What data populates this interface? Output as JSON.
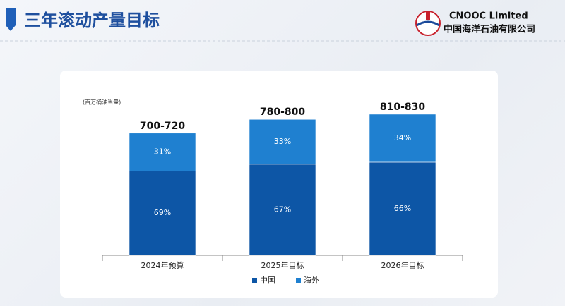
{
  "header": {
    "title": "三年滚动产量目标",
    "company_en": "CNOOC Limited",
    "company_cn": "中国海洋石油有限公司"
  },
  "chart_data": {
    "type": "stacked_bar",
    "unit_label": "(百万桶油当量)",
    "categories": [
      "2024年预算",
      "2025年目标",
      "2026年目标"
    ],
    "total_labels": [
      "700-720",
      "780-800",
      "810-830"
    ],
    "total_ranges": [
      [
        700,
        720
      ],
      [
        780,
        800
      ],
      [
        810,
        830
      ]
    ],
    "series": [
      {
        "name": "中国",
        "color": "#0d56a6",
        "values": [
          69,
          67,
          66
        ],
        "value_labels": [
          "69%",
          "67%",
          "66%"
        ]
      },
      {
        "name": "海外",
        "color": "#1f80d0",
        "values": [
          31,
          33,
          34
        ],
        "value_labels": [
          "31%",
          "33%",
          "34%"
        ]
      }
    ]
  }
}
